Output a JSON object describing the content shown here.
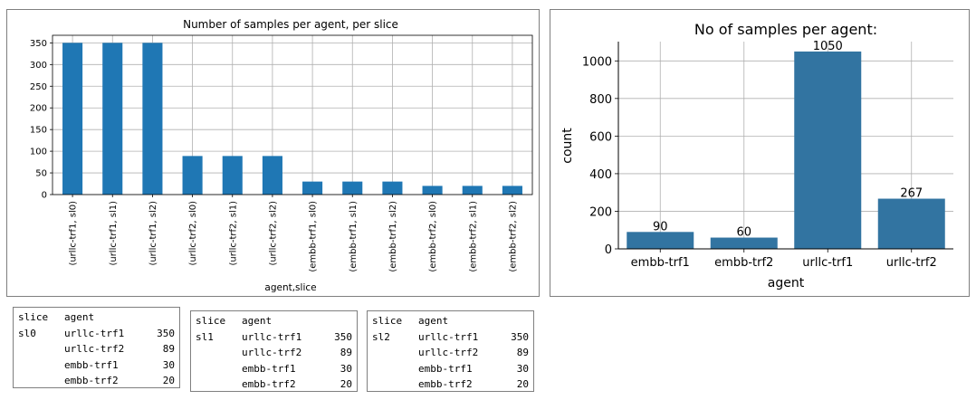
{
  "colors": {
    "bar_left": "#1f77b4",
    "bar_right": "#3274a1",
    "grid": "#b0b0b0",
    "border": "#7f7f7f"
  },
  "chart_data": [
    {
      "type": "bar",
      "title": "Number of samples per agent, per slice",
      "xlabel": "agent,slice",
      "ylabel": "",
      "categories": [
        "(urllc-trf1, sl0)",
        "(urllc-trf1, sl1)",
        "(urllc-trf1, sl2)",
        "(urllc-trf2, sl0)",
        "(urllc-trf2, sl1)",
        "(urllc-trf2, sl2)",
        "(embb-trf1, sl0)",
        "(embb-trf1, sl1)",
        "(embb-trf1, sl2)",
        "(embb-trf2, sl0)",
        "(embb-trf2, sl1)",
        "(embb-trf2, sl2)"
      ],
      "values": [
        350,
        350,
        350,
        89,
        89,
        89,
        30,
        30,
        30,
        20,
        20,
        20
      ],
      "ylim": [
        0,
        367.5
      ],
      "yticks": [
        "0",
        "50",
        "100",
        "150",
        "200",
        "250",
        "300",
        "350"
      ],
      "grid": true
    },
    {
      "type": "bar",
      "title": "No of samples per agent:",
      "xlabel": "agent",
      "ylabel": "count",
      "categories": [
        "embb-trf1",
        "embb-trf2",
        "urllc-trf1",
        "urllc-trf2"
      ],
      "values": [
        90,
        60,
        1050,
        267
      ],
      "data_labels": [
        "90",
        "60",
        "1050",
        "267"
      ],
      "ylim": [
        0,
        1102.5
      ],
      "yticks": [
        "0",
        "200",
        "400",
        "600",
        "800",
        "1000"
      ],
      "grid": true
    }
  ],
  "tables": [
    {
      "header": [
        "slice",
        "agent"
      ],
      "rows": [
        [
          "sl0",
          "urllc-trf1",
          "350"
        ],
        [
          "",
          "urllc-trf2",
          "89"
        ],
        [
          "",
          "embb-trf1",
          "30"
        ],
        [
          "",
          "embb-trf2",
          "20"
        ]
      ]
    },
    {
      "header": [
        "slice",
        "agent"
      ],
      "rows": [
        [
          "sl1",
          "urllc-trf1",
          "350"
        ],
        [
          "",
          "urllc-trf2",
          "89"
        ],
        [
          "",
          "embb-trf1",
          "30"
        ],
        [
          "",
          "embb-trf2",
          "20"
        ]
      ]
    },
    {
      "header": [
        "slice",
        "agent"
      ],
      "rows": [
        [
          "sl2",
          "urllc-trf1",
          "350"
        ],
        [
          "",
          "urllc-trf2",
          "89"
        ],
        [
          "",
          "embb-trf1",
          "30"
        ],
        [
          "",
          "embb-trf2",
          "20"
        ]
      ]
    }
  ]
}
